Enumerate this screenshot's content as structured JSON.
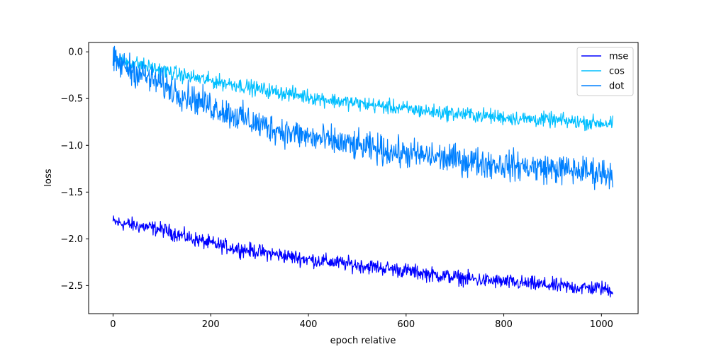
{
  "chart_data": {
    "type": "line",
    "title": "",
    "xlabel": "epoch relative",
    "ylabel": "loss",
    "xlim": [
      -50,
      1075
    ],
    "ylim": [
      -2.8,
      0.1
    ],
    "xticks": [
      0,
      200,
      400,
      600,
      800,
      1000
    ],
    "yticks": [
      0.0,
      -0.5,
      -1.0,
      -1.5,
      -2.0,
      -2.5
    ],
    "xtick_labels": [
      "0",
      "200",
      "400",
      "600",
      "800",
      "1000"
    ],
    "ytick_labels": [
      "0.0",
      "−0.5",
      "−1.0",
      "−1.5",
      "−2.0",
      "−2.5"
    ],
    "grid": false,
    "legend_position": "top-right",
    "x_range": [
      0,
      1023
    ],
    "series": [
      {
        "name": "mse",
        "color": "#0000ff",
        "x": [
          0,
          50,
          100,
          150,
          200,
          250,
          300,
          350,
          400,
          450,
          500,
          550,
          600,
          650,
          700,
          750,
          800,
          850,
          900,
          950,
          1000,
          1023
        ],
        "values": [
          -1.82,
          -1.86,
          -1.9,
          -1.98,
          -2.05,
          -2.1,
          -2.14,
          -2.18,
          -2.22,
          -2.25,
          -2.28,
          -2.31,
          -2.34,
          -2.38,
          -2.41,
          -2.44,
          -2.46,
          -2.48,
          -2.5,
          -2.52,
          -2.53,
          -2.55
        ],
        "noise_amplitude": 0.06
      },
      {
        "name": "cos",
        "color": "#00bfff",
        "x": [
          0,
          50,
          100,
          150,
          200,
          250,
          300,
          350,
          400,
          450,
          500,
          550,
          600,
          650,
          700,
          750,
          800,
          850,
          900,
          950,
          1000,
          1023
        ],
        "values": [
          -0.08,
          -0.13,
          -0.2,
          -0.26,
          -0.31,
          -0.35,
          -0.4,
          -0.44,
          -0.48,
          -0.52,
          -0.55,
          -0.58,
          -0.61,
          -0.64,
          -0.66,
          -0.68,
          -0.7,
          -0.72,
          -0.73,
          -0.75,
          -0.76,
          -0.77
        ],
        "noise_amplitude": 0.06
      },
      {
        "name": "dot",
        "color": "#0080ff",
        "x": [
          0,
          50,
          100,
          150,
          200,
          250,
          300,
          350,
          400,
          450,
          500,
          550,
          600,
          650,
          700,
          750,
          800,
          850,
          900,
          950,
          1000,
          1023
        ],
        "values": [
          -0.1,
          -0.22,
          -0.35,
          -0.47,
          -0.58,
          -0.68,
          -0.78,
          -0.85,
          -0.91,
          -0.96,
          -1.01,
          -1.05,
          -1.09,
          -1.12,
          -1.15,
          -1.18,
          -1.21,
          -1.23,
          -1.25,
          -1.27,
          -1.29,
          -1.3
        ],
        "noise_amplitude": 0.12
      }
    ]
  }
}
